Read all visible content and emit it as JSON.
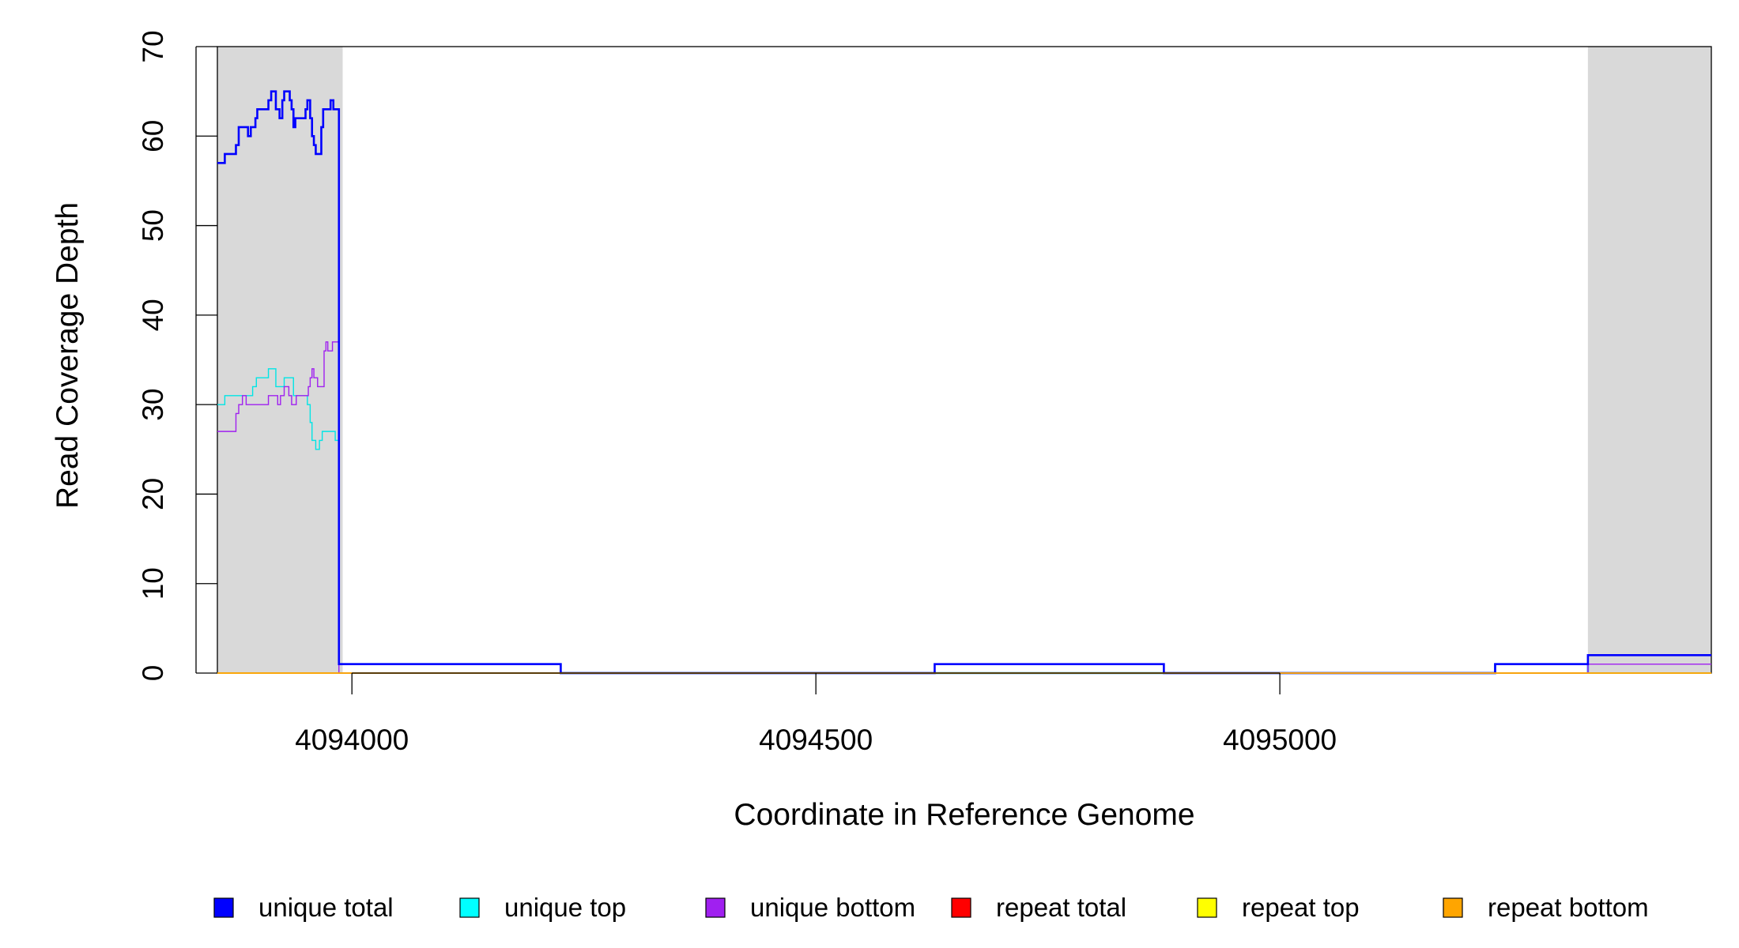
{
  "chart_data": {
    "type": "line",
    "title": "",
    "xlabel": "Coordinate in Reference Genome",
    "ylabel": "Read Coverage Depth",
    "xlim": [
      4093855,
      4095465
    ],
    "ylim": [
      0,
      70
    ],
    "x_ticks": [
      4094000,
      4094500,
      4095000
    ],
    "y_ticks": [
      0,
      10,
      20,
      30,
      40,
      50,
      60,
      70
    ],
    "x_tick_labels": [
      "4094000",
      "4094500",
      "4095000"
    ],
    "y_tick_labels": [
      "0",
      "10",
      "20",
      "30",
      "40",
      "50",
      "60",
      "70"
    ],
    "shaded_regions": [
      [
        4093855,
        4093990
      ],
      [
        4095332,
        4095465
      ]
    ],
    "grid": false,
    "legend_position": "bottom",
    "colors": {
      "shaded": "#d9d9d9",
      "unique_total": "#0000ff",
      "unique_top": "#00e5e5",
      "unique_bottom": "#a020f0",
      "repeat_total": "#ff0000",
      "repeat_top": "#ffff00",
      "repeat_bottom": "#ffa500",
      "flat_region": "#1e90ff"
    },
    "legend": [
      {
        "name": "unique total",
        "color": "#0000ff"
      },
      {
        "name": "unique top",
        "color": "#00ffff"
      },
      {
        "name": "unique bottom",
        "color": "#a020f0"
      },
      {
        "name": "repeat total",
        "color": "#ff0000"
      },
      {
        "name": "repeat top",
        "color": "#ffff00"
      },
      {
        "name": "repeat bottom",
        "color": "#ffa500"
      }
    ],
    "series": [
      {
        "name": "unique total",
        "color": "#0000ff",
        "width": 2.6,
        "steps": [
          [
            4093855,
            57
          ],
          [
            4093863,
            58
          ],
          [
            4093875,
            59
          ],
          [
            4093878,
            61
          ],
          [
            4093888,
            60
          ],
          [
            4093891,
            61
          ],
          [
            4093896,
            62
          ],
          [
            4093898,
            63
          ],
          [
            4093910,
            64
          ],
          [
            4093913,
            65
          ],
          [
            4093918,
            63
          ],
          [
            4093922,
            62
          ],
          [
            4093925,
            64
          ],
          [
            4093927,
            65
          ],
          [
            4093933,
            64
          ],
          [
            4093935,
            63
          ],
          [
            4093937,
            61
          ],
          [
            4093939,
            62
          ],
          [
            4093950,
            63
          ],
          [
            4093952,
            64
          ],
          [
            4093955,
            62
          ],
          [
            4093957,
            60
          ],
          [
            4093959,
            59
          ],
          [
            4093961,
            58
          ],
          [
            4093967,
            61
          ],
          [
            4093969,
            63
          ],
          [
            4093977,
            64
          ],
          [
            4093980,
            63
          ],
          [
            4093986,
            1
          ],
          [
            4094225,
            0
          ],
          [
            4094628,
            1
          ],
          [
            4094875,
            0
          ],
          [
            4095232,
            1
          ],
          [
            4095332,
            2
          ],
          [
            4095465,
            2
          ]
        ]
      },
      {
        "name": "unique top",
        "color": "#00e5e5",
        "width": 1.4,
        "steps": [
          [
            4093855,
            30
          ],
          [
            4093863,
            31
          ],
          [
            4093893,
            32
          ],
          [
            4093897,
            33
          ],
          [
            4093910,
            34
          ],
          [
            4093918,
            32
          ],
          [
            4093927,
            33
          ],
          [
            4093937,
            31
          ],
          [
            4093952,
            30
          ],
          [
            4093955,
            28
          ],
          [
            4093957,
            26
          ],
          [
            4093961,
            25
          ],
          [
            4093965,
            26
          ],
          [
            4093968,
            27
          ],
          [
            4093982,
            26
          ],
          [
            4093986,
            0
          ],
          [
            4095465,
            0
          ]
        ]
      },
      {
        "name": "unique bottom",
        "color": "#a020f0",
        "width": 1.4,
        "steps": [
          [
            4093855,
            27
          ],
          [
            4093875,
            29
          ],
          [
            4093878,
            30
          ],
          [
            4093882,
            31
          ],
          [
            4093886,
            30
          ],
          [
            4093910,
            31
          ],
          [
            4093920,
            30
          ],
          [
            4093923,
            31
          ],
          [
            4093927,
            32
          ],
          [
            4093932,
            31
          ],
          [
            4093935,
            30
          ],
          [
            4093940,
            31
          ],
          [
            4093953,
            32
          ],
          [
            4093955,
            33
          ],
          [
            4093957,
            34
          ],
          [
            4093959,
            33
          ],
          [
            4093963,
            32
          ],
          [
            4093970,
            36
          ],
          [
            4093972,
            37
          ],
          [
            4093974,
            36
          ],
          [
            4093979,
            37
          ],
          [
            4093986,
            0
          ],
          [
            4094628,
            1
          ],
          [
            4094875,
            0
          ],
          [
            4095332,
            1
          ],
          [
            4095465,
            1
          ]
        ]
      },
      {
        "name": "repeat total",
        "color": "#ff0000",
        "width": 1.4,
        "steps": [
          [
            4093855,
            0
          ],
          [
            4095465,
            0
          ]
        ]
      },
      {
        "name": "repeat top",
        "color": "#ffff00",
        "width": 1.4,
        "steps": [
          [
            4093855,
            0
          ],
          [
            4095465,
            0
          ]
        ]
      },
      {
        "name": "repeat bottom",
        "color": "#ffa500",
        "width": 1.4,
        "steps": [
          [
            4093855,
            0
          ],
          [
            4095465,
            0
          ]
        ]
      },
      {
        "name": "",
        "color": "#1e90ff",
        "width": 2.6,
        "steps": [
          [
            4093986,
            1
          ],
          [
            4094225,
            0
          ],
          [
            4095232,
            1
          ],
          [
            4095332,
            0
          ]
        ]
      }
    ]
  }
}
